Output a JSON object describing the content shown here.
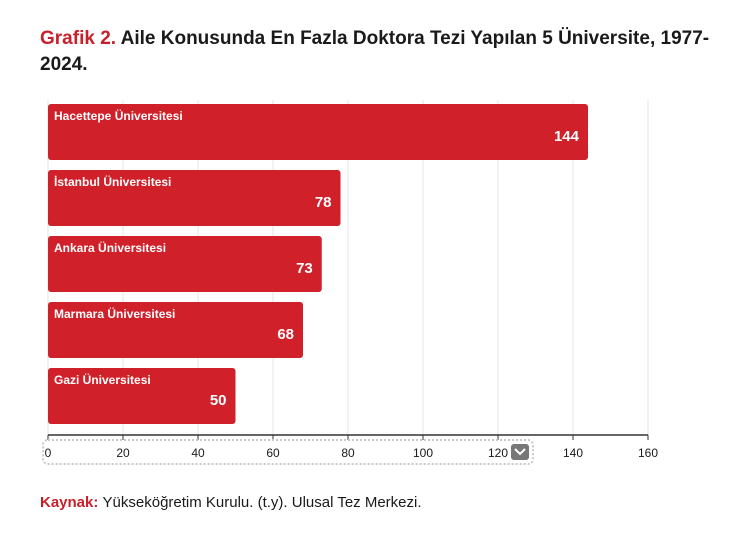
{
  "header": {
    "prefix": "Grafik 2.",
    "title": "Aile Konusunda En Fazla Doktora Tezi Yapılan 5 Üniversite, 1977-2024."
  },
  "source": {
    "label": "Kaynak:",
    "text": "Yükseköğretim Kurulu. (t.y). Ulusal Tez Merkezi."
  },
  "colors": {
    "bar": "#d0202a",
    "accent": "#c8202a",
    "grid": "#e6e6e6"
  },
  "controls": {
    "scroll_button_icon": "chevron-down-icon"
  },
  "chart_data": {
    "type": "bar",
    "orientation": "horizontal",
    "categories": [
      "Hacettepe Üniversitesi",
      "İstanbul Üniversitesi",
      "Ankara Üniversitesi",
      "Marmara Üniversitesi",
      "Gazi Üniversitesi"
    ],
    "values": [
      144,
      78,
      73,
      68,
      50
    ],
    "xlim": [
      0,
      160
    ],
    "xticks": [
      0,
      20,
      40,
      60,
      80,
      100,
      120,
      140,
      160
    ],
    "grid": true
  }
}
